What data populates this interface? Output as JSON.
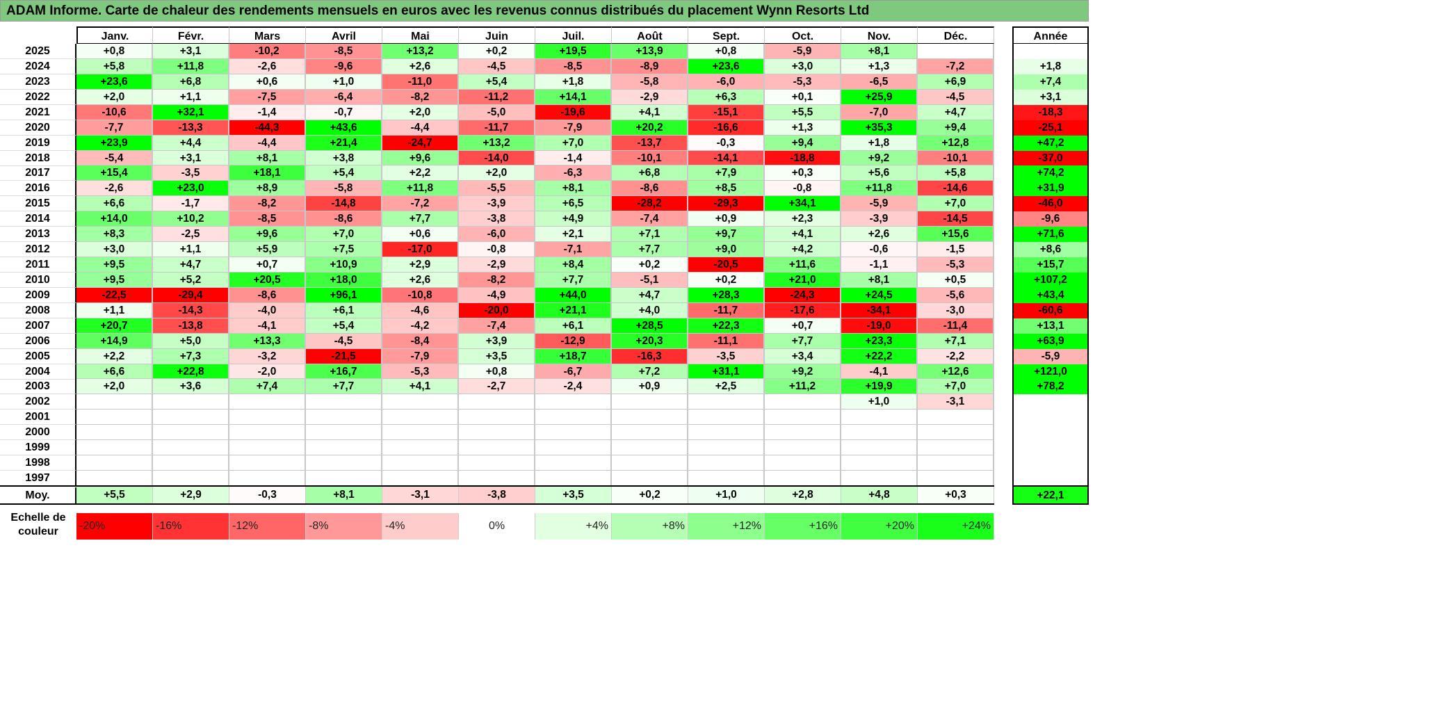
{
  "title": "ADAM Informe. Carte de chaleur des rendements mensuels en euros avec les revenus connus distribués du placement Wynn Resorts Ltd",
  "chart_data": {
    "type": "heatmap",
    "title": "ADAM Informe. Carte de chaleur des rendements mensuels en euros avec les revenus connus distribués du placement Wynn Resorts Ltd",
    "columns": [
      "Janv.",
      "Févr.",
      "Mars",
      "Avril",
      "Mai",
      "Juin",
      "Juil.",
      "Août",
      "Sept.",
      "Oct.",
      "Nov.",
      "Déc."
    ],
    "year_header": "Année",
    "rows": [
      {
        "year": "2025",
        "values": [
          "+0,8",
          "+3,1",
          "-10,2",
          "-8,5",
          "+13,2",
          "+0,2",
          "+19,5",
          "+13,9",
          "+0,8",
          "-5,9",
          "+8,1",
          ""
        ],
        "annual": ""
      },
      {
        "year": "2024",
        "values": [
          "+5,8",
          "+11,8",
          "-2,6",
          "-9,6",
          "+2,6",
          "-4,5",
          "-8,5",
          "-8,9",
          "+23,6",
          "+3,0",
          "+1,3",
          "-7,2"
        ],
        "annual": "+1,8"
      },
      {
        "year": "2023",
        "values": [
          "+23,6",
          "+6,8",
          "+0,6",
          "+1,0",
          "-11,0",
          "+5,4",
          "+1,8",
          "-5,8",
          "-6,0",
          "-5,3",
          "-6,5",
          "+6,9"
        ],
        "annual": "+7,4"
      },
      {
        "year": "2022",
        "values": [
          "+2,0",
          "+1,1",
          "-7,5",
          "-6,4",
          "-8,2",
          "-11,2",
          "+14,1",
          "-2,9",
          "+6,3",
          "+0,1",
          "+25,9",
          "-4,5"
        ],
        "annual": "+3,1"
      },
      {
        "year": "2021",
        "values": [
          "-10,6",
          "+32,1",
          "-1,4",
          "-0,7",
          "+2,0",
          "-5,0",
          "-19,6",
          "+4,1",
          "-15,1",
          "+5,5",
          "-7,0",
          "+4,7"
        ],
        "annual": "-18,3"
      },
      {
        "year": "2020",
        "values": [
          "-7,7",
          "-13,3",
          "-44,3",
          "+43,6",
          "-4,4",
          "-11,7",
          "-7,9",
          "+20,2",
          "-16,6",
          "+1,3",
          "+35,3",
          "+9,4"
        ],
        "annual": "-25,1"
      },
      {
        "year": "2019",
        "values": [
          "+23,9",
          "+4,4",
          "-4,4",
          "+21,4",
          "-24,7",
          "+13,2",
          "+7,0",
          "-13,7",
          "-0,3",
          "+9,4",
          "+1,8",
          "+12,8"
        ],
        "annual": "+47,2"
      },
      {
        "year": "2018",
        "values": [
          "-5,4",
          "+3,1",
          "+8,1",
          "+3,8",
          "+9,6",
          "-14,0",
          "-1,4",
          "-10,1",
          "-14,1",
          "-18,8",
          "+9,2",
          "-10,1"
        ],
        "annual": "-37,0"
      },
      {
        "year": "2017",
        "values": [
          "+15,4",
          "-3,5",
          "+18,1",
          "+5,4",
          "+2,2",
          "+2,0",
          "-6,3",
          "+6,8",
          "+7,9",
          "+0,3",
          "+5,6",
          "+5,8"
        ],
        "annual": "+74,2"
      },
      {
        "year": "2016",
        "values": [
          "-2,6",
          "+23,0",
          "+8,9",
          "-5,8",
          "+11,8",
          "-5,5",
          "+8,1",
          "-8,6",
          "+8,5",
          "-0,8",
          "+11,8",
          "-14,6"
        ],
        "annual": "+31,9"
      },
      {
        "year": "2015",
        "values": [
          "+6,6",
          "-1,7",
          "-8,2",
          "-14,8",
          "-7,2",
          "-3,9",
          "+6,5",
          "-28,2",
          "-29,3",
          "+34,1",
          "-5,9",
          "+7,0"
        ],
        "annual": "-46,0"
      },
      {
        "year": "2014",
        "values": [
          "+14,0",
          "+10,2",
          "-8,5",
          "-8,6",
          "+7,7",
          "-3,8",
          "+4,9",
          "-7,4",
          "+0,9",
          "+2,3",
          "-3,9",
          "-14,5"
        ],
        "annual": "-9,6"
      },
      {
        "year": "2013",
        "values": [
          "+8,3",
          "-2,5",
          "+9,6",
          "+7,0",
          "+0,6",
          "-6,0",
          "+2,1",
          "+7,1",
          "+9,7",
          "+4,1",
          "+2,6",
          "+15,6"
        ],
        "annual": "+71,6"
      },
      {
        "year": "2012",
        "values": [
          "+3,0",
          "+1,1",
          "+5,9",
          "+7,5",
          "-17,0",
          "-0,8",
          "-7,1",
          "+7,7",
          "+9,0",
          "+4,2",
          "-0,6",
          "-1,5"
        ],
        "annual": "+8,6"
      },
      {
        "year": "2011",
        "values": [
          "+9,5",
          "+4,7",
          "+0,7",
          "+10,9",
          "+2,9",
          "-2,9",
          "+8,4",
          "+0,2",
          "-20,5",
          "+11,6",
          "-1,1",
          "-5,3"
        ],
        "annual": "+15,7"
      },
      {
        "year": "2010",
        "values": [
          "+9,5",
          "+5,2",
          "+20,5",
          "+18,0",
          "+2,6",
          "-8,2",
          "+7,7",
          "-5,1",
          "+0,2",
          "+21,0",
          "+8,1",
          "+0,5"
        ],
        "annual": "+107,2"
      },
      {
        "year": "2009",
        "values": [
          "-22,5",
          "-29,4",
          "-8,6",
          "+96,1",
          "-10,8",
          "-4,9",
          "+44,0",
          "+4,7",
          "+28,3",
          "-24,3",
          "+24,5",
          "-5,6"
        ],
        "annual": "+43,4"
      },
      {
        "year": "2008",
        "values": [
          "+1,1",
          "-14,3",
          "-4,0",
          "+6,1",
          "-4,6",
          "-20,0",
          "+21,1",
          "+4,0",
          "-11,7",
          "-17,6",
          "-34,1",
          "-3,0"
        ],
        "annual": "-60,6"
      },
      {
        "year": "2007",
        "values": [
          "+20,7",
          "-13,8",
          "-4,1",
          "+5,4",
          "-4,2",
          "-7,4",
          "+6,1",
          "+28,5",
          "+22,3",
          "+0,7",
          "-19,0",
          "-11,4"
        ],
        "annual": "+13,1"
      },
      {
        "year": "2006",
        "values": [
          "+14,9",
          "+5,0",
          "+13,3",
          "-4,5",
          "-8,4",
          "+3,9",
          "-12,9",
          "+20,3",
          "-11,1",
          "+7,7",
          "+23,3",
          "+7,1"
        ],
        "annual": "+63,9"
      },
      {
        "year": "2005",
        "values": [
          "+2,2",
          "+7,3",
          "-3,2",
          "-21,5",
          "-7,9",
          "+3,5",
          "+18,7",
          "-16,3",
          "-3,5",
          "+3,4",
          "+22,2",
          "-2,2"
        ],
        "annual": "-5,9"
      },
      {
        "year": "2004",
        "values": [
          "+6,6",
          "+22,8",
          "-2,0",
          "+16,7",
          "-5,3",
          "+0,8",
          "-6,7",
          "+7,2",
          "+31,1",
          "+9,2",
          "-4,1",
          "+12,6"
        ],
        "annual": "+121,0"
      },
      {
        "year": "2003",
        "values": [
          "+2,0",
          "+3,6",
          "+7,4",
          "+7,7",
          "+4,1",
          "-2,7",
          "-2,4",
          "+0,9",
          "+2,5",
          "+11,2",
          "+19,9",
          "+7,0"
        ],
        "annual": "+78,2"
      },
      {
        "year": "2002",
        "values": [
          "",
          "",
          "",
          "",
          "",
          "",
          "",
          "",
          "",
          "",
          "+1,0",
          "-3,1"
        ],
        "annual": ""
      },
      {
        "year": "2001",
        "values": [
          "",
          "",
          "",
          "",
          "",
          "",
          "",
          "",
          "",
          "",
          "",
          ""
        ],
        "annual": ""
      },
      {
        "year": "2000",
        "values": [
          "",
          "",
          "",
          "",
          "",
          "",
          "",
          "",
          "",
          "",
          "",
          ""
        ],
        "annual": ""
      },
      {
        "year": "1999",
        "values": [
          "",
          "",
          "",
          "",
          "",
          "",
          "",
          "",
          "",
          "",
          "",
          ""
        ],
        "annual": ""
      },
      {
        "year": "1998",
        "values": [
          "",
          "",
          "",
          "",
          "",
          "",
          "",
          "",
          "",
          "",
          "",
          ""
        ],
        "annual": ""
      },
      {
        "year": "1997",
        "values": [
          "",
          "",
          "",
          "",
          "",
          "",
          "",
          "",
          "",
          "",
          "",
          ""
        ],
        "annual": ""
      }
    ],
    "average": {
      "label": "Moy.",
      "values": [
        "+5,5",
        "+2,9",
        "-0,3",
        "+8,1",
        "-3,1",
        "-3,8",
        "+3,5",
        "+0,2",
        "+1,0",
        "+2,8",
        "+4,8",
        "+0,3"
      ],
      "annual": "+22,1"
    },
    "color_scale": {
      "label": "Echelle de couleur",
      "steps": [
        {
          "label": "-20%",
          "value": -20,
          "color": "#ff0000"
        },
        {
          "label": "-16%",
          "value": -16,
          "color": "#ff3333"
        },
        {
          "label": "-12%",
          "value": -12,
          "color": "#ff6666"
        },
        {
          "label": "-8%",
          "value": -8,
          "color": "#ff9999"
        },
        {
          "label": "-4%",
          "value": -4,
          "color": "#ffcccc"
        },
        {
          "label": "0%",
          "value": 0,
          "color": "#ffffff"
        },
        {
          "label": "+4%",
          "value": 4,
          "color": "#e2ffe2"
        },
        {
          "label": "+8%",
          "value": 8,
          "color": "#b5ffb5"
        },
        {
          "label": "+12%",
          "value": 12,
          "color": "#8cff8c"
        },
        {
          "label": "+16%",
          "value": 16,
          "color": "#66ff66"
        },
        {
          "label": "+20%",
          "value": 20,
          "color": "#40ff40"
        },
        {
          "label": "+24%",
          "value": 24,
          "color": "#1aff1a"
        }
      ]
    }
  }
}
